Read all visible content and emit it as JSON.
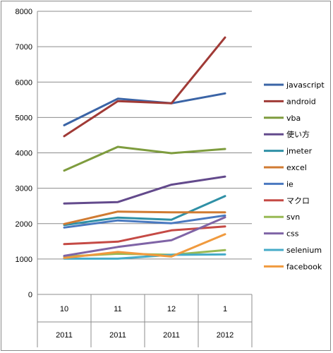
{
  "chart_data": {
    "type": "line",
    "categories": [
      {
        "month": "10",
        "year": "2011"
      },
      {
        "month": "11",
        "year": "2011"
      },
      {
        "month": "12",
        "year": "2011"
      },
      {
        "month": "1",
        "year": "2012"
      }
    ],
    "ylim": [
      0,
      8000
    ],
    "yticks": [
      "0",
      "1000",
      "2000",
      "3000",
      "4000",
      "5000",
      "6000",
      "7000",
      "8000"
    ],
    "grid": true,
    "legend_position": "right",
    "series": [
      {
        "name": "javascript",
        "color": "#3a64a6",
        "values": [
          4780,
          5530,
          5400,
          5680
        ]
      },
      {
        "name": "android",
        "color": "#a03a36",
        "values": [
          4470,
          5460,
          5400,
          7260
        ]
      },
      {
        "name": "vba",
        "color": "#7e9c3e",
        "values": [
          3500,
          4170,
          3990,
          4110
        ]
      },
      {
        "name": "使い方",
        "color": "#634a8c",
        "values": [
          2570,
          2610,
          3100,
          3330
        ]
      },
      {
        "name": "jmeter",
        "color": "#2f90a6",
        "values": [
          1960,
          2170,
          2110,
          2780
        ]
      },
      {
        "name": "excel",
        "color": "#d07b32",
        "values": [
          1990,
          2340,
          2320,
          2320
        ]
      },
      {
        "name": "ie",
        "color": "#4a79c0",
        "values": [
          1890,
          2090,
          2010,
          2230
        ]
      },
      {
        "name": "マクロ",
        "color": "#c54a45",
        "values": [
          1420,
          1490,
          1810,
          1920
        ]
      },
      {
        "name": "svn",
        "color": "#98b954",
        "values": [
          1070,
          1150,
          1120,
          1250
        ]
      },
      {
        "name": "css",
        "color": "#7f64a6",
        "values": [
          1090,
          1340,
          1530,
          2180
        ]
      },
      {
        "name": "selenium",
        "color": "#45abc8",
        "values": [
          1010,
          1010,
          1120,
          1130
        ]
      },
      {
        "name": "facebook",
        "color": "#f09a3e",
        "values": [
          1030,
          1200,
          1070,
          1700
        ]
      }
    ]
  }
}
